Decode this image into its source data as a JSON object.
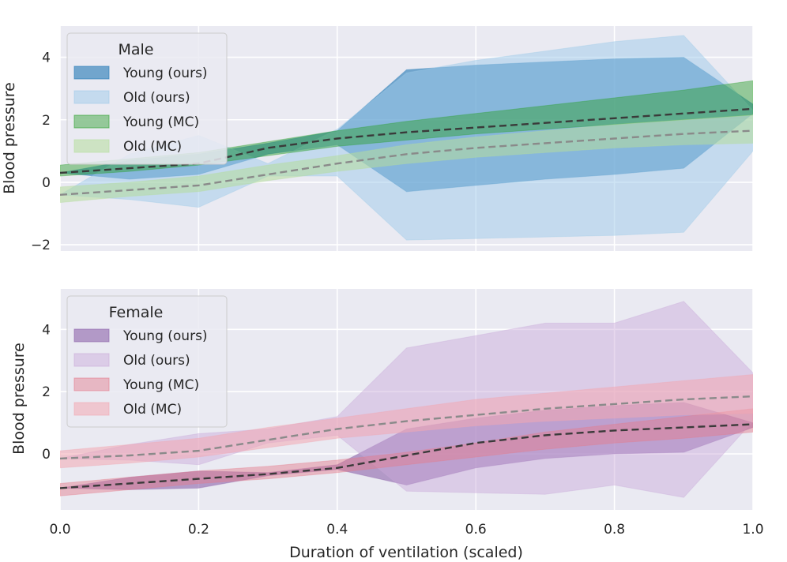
{
  "chart_data": [
    {
      "type": "area",
      "panel": "top",
      "xlabel": "",
      "ylabel": "Blood pressure",
      "xlim": [
        0.0,
        1.0
      ],
      "ylim": [
        -2.2,
        5.0
      ],
      "xticks": [
        0.0,
        0.2,
        0.4,
        0.6,
        0.8,
        1.0
      ],
      "yticks": [
        -2,
        0,
        2,
        4
      ],
      "ytick_labels": [
        "−2",
        "0",
        "2",
        "4"
      ],
      "grid": true,
      "legend": {
        "title": "Male",
        "position": "top-left"
      },
      "series": [
        {
          "name": "Young (ours)",
          "color": "#1f77b4",
          "alpha": 0.6,
          "line": "dashed",
          "line_color": "#3a3a3a",
          "x": [
            0.0,
            0.1,
            0.2,
            0.3,
            0.4,
            0.5,
            0.6,
            0.7,
            0.8,
            0.9,
            1.0
          ],
          "mean": [
            0.3,
            0.45,
            0.6,
            1.1,
            1.4,
            1.6,
            1.75,
            1.9,
            2.05,
            2.2,
            2.35
          ],
          "lower": [
            0.3,
            0.1,
            0.25,
            0.9,
            1.2,
            -0.3,
            -0.1,
            0.1,
            0.25,
            0.45,
            2.2
          ],
          "upper": [
            0.3,
            0.7,
            0.9,
            1.25,
            1.65,
            3.6,
            3.75,
            3.85,
            3.95,
            4.0,
            2.5
          ]
        },
        {
          "name": "Old (ours)",
          "color": "#9ecae9",
          "alpha": 0.5,
          "line": "dashed",
          "line_color": "#8a8a8a",
          "x": [
            0.0,
            0.1,
            0.2,
            0.3,
            0.4,
            0.5,
            0.6,
            0.7,
            0.8,
            0.9,
            1.0
          ],
          "mean": [
            -0.4,
            -0.25,
            -0.1,
            0.25,
            0.6,
            0.9,
            1.1,
            1.25,
            1.4,
            1.55,
            1.65
          ],
          "lower": [
            -0.4,
            -0.55,
            -0.8,
            0.2,
            0.2,
            -1.85,
            -1.8,
            -1.75,
            -1.7,
            -1.6,
            1.0
          ],
          "upper": [
            -0.4,
            0.9,
            1.5,
            0.6,
            1.7,
            3.5,
            3.9,
            4.2,
            4.5,
            4.7,
            2.3
          ]
        },
        {
          "name": "Young (MC)",
          "color": "#2ca02c",
          "alpha": 0.45,
          "x": [
            0.0,
            0.1,
            0.2,
            0.3,
            0.4,
            0.5,
            0.6,
            0.7,
            0.8,
            0.9,
            1.0
          ],
          "lower": [
            0.2,
            0.35,
            0.55,
            0.85,
            1.15,
            1.35,
            1.55,
            1.7,
            1.85,
            2.0,
            2.15
          ],
          "upper": [
            0.55,
            0.75,
            0.95,
            1.3,
            1.65,
            1.95,
            2.2,
            2.45,
            2.7,
            2.95,
            3.25
          ]
        },
        {
          "name": "Old (MC)",
          "color": "#b5dd9d",
          "alpha": 0.55,
          "x": [
            0.0,
            0.1,
            0.2,
            0.3,
            0.4,
            0.5,
            0.6,
            0.7,
            0.8,
            0.9,
            1.0
          ],
          "lower": [
            -0.65,
            -0.45,
            -0.3,
            0.05,
            0.35,
            0.6,
            0.8,
            0.95,
            1.1,
            1.2,
            1.25
          ],
          "upper": [
            -0.15,
            0.0,
            0.2,
            0.55,
            0.85,
            1.2,
            1.45,
            1.65,
            1.85,
            2.0,
            2.15
          ]
        }
      ]
    },
    {
      "type": "area",
      "panel": "bottom",
      "xlabel": "Duration of ventilation (scaled)",
      "ylabel": "Blood pressure",
      "xlim": [
        0.0,
        1.0
      ],
      "ylim": [
        -1.8,
        5.3
      ],
      "xticks": [
        0.0,
        0.2,
        0.4,
        0.6,
        0.8,
        1.0
      ],
      "xtick_labels": [
        "0.0",
        "0.2",
        "0.4",
        "0.6",
        "0.8",
        "1.0"
      ],
      "yticks": [
        0,
        2,
        4
      ],
      "ytick_labels": [
        "0",
        "2",
        "4"
      ],
      "grid": true,
      "legend": {
        "title": "Female",
        "position": "top-left"
      },
      "series": [
        {
          "name": "Young (ours)",
          "color": "#8c62aa",
          "alpha": 0.6,
          "line": "dashed",
          "line_color": "#3a3a3a",
          "x": [
            0.0,
            0.1,
            0.2,
            0.3,
            0.4,
            0.5,
            0.6,
            0.7,
            0.8,
            0.9,
            1.0
          ],
          "mean": [
            -1.1,
            -0.95,
            -0.8,
            -0.65,
            -0.45,
            -0.05,
            0.35,
            0.6,
            0.75,
            0.85,
            0.95
          ],
          "lower": [
            -1.1,
            -1.15,
            -1.1,
            -0.7,
            -0.5,
            -1.0,
            -0.45,
            -0.15,
            0.0,
            0.05,
            0.85
          ],
          "upper": [
            -1.1,
            -0.75,
            -0.55,
            -0.6,
            -0.35,
            0.8,
            1.15,
            1.4,
            1.55,
            1.65,
            1.0
          ]
        },
        {
          "name": "Old (ours)",
          "color": "#c9a9d9",
          "alpha": 0.45,
          "line": "dashed",
          "line_color": "#8a8a8a",
          "x": [
            0.0,
            0.1,
            0.2,
            0.3,
            0.4,
            0.5,
            0.6,
            0.7,
            0.8,
            0.9,
            1.0
          ],
          "mean": [
            -0.15,
            -0.05,
            0.1,
            0.45,
            0.8,
            1.05,
            1.25,
            1.45,
            1.6,
            1.75,
            1.85
          ],
          "lower": [
            -0.15,
            -0.2,
            -0.35,
            0.35,
            0.6,
            -1.2,
            -1.25,
            -1.3,
            -1.0,
            -1.4,
            1.05
          ],
          "upper": [
            -0.15,
            0.3,
            0.65,
            0.8,
            1.2,
            3.4,
            3.8,
            4.2,
            4.2,
            4.9,
            2.6
          ]
        },
        {
          "name": "Young (MC)",
          "color": "#e57a8a",
          "alpha": 0.45,
          "x": [
            0.0,
            0.1,
            0.2,
            0.3,
            0.4,
            0.5,
            0.6,
            0.7,
            0.8,
            0.9,
            1.0
          ],
          "lower": [
            -1.35,
            -1.15,
            -0.95,
            -0.8,
            -0.6,
            -0.35,
            -0.1,
            0.15,
            0.35,
            0.5,
            0.7
          ],
          "upper": [
            -0.95,
            -0.75,
            -0.55,
            -0.4,
            -0.2,
            0.05,
            0.35,
            0.7,
            0.95,
            1.2,
            1.45
          ]
        },
        {
          "name": "Old (MC)",
          "color": "#f2a7b2",
          "alpha": 0.55,
          "x": [
            0.0,
            0.1,
            0.2,
            0.3,
            0.4,
            0.5,
            0.6,
            0.7,
            0.8,
            0.9,
            1.0
          ],
          "lower": [
            -0.45,
            -0.3,
            -0.1,
            0.2,
            0.5,
            0.7,
            0.9,
            1.05,
            1.15,
            1.25,
            1.3
          ],
          "upper": [
            0.1,
            0.3,
            0.5,
            0.85,
            1.15,
            1.45,
            1.75,
            1.95,
            2.15,
            2.35,
            2.55
          ]
        }
      ]
    }
  ]
}
